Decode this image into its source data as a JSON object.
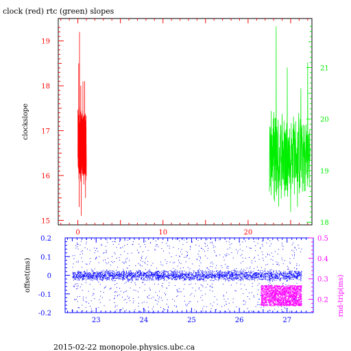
{
  "header_title": "clock (red) rtc (green) slopes",
  "footer": "2015-02-22  monopole.physics.ubc.ca",
  "colors": {
    "frame": "#000000",
    "clock": "#ff0000",
    "rtc": "#00ee00",
    "offset": "#0000ff",
    "rndtrip": "#ff00ff"
  },
  "chart_data": [
    {
      "type": "line",
      "title": "clock (red) rtc (green) slopes",
      "xlabel": "",
      "ylabel": "clockslope",
      "xlim": [
        -2.3,
        27.5
      ],
      "x_ticks": [
        0,
        10,
        20
      ],
      "left_axis": {
        "color": "#ff0000",
        "ylim": [
          14.9,
          19.5
        ],
        "ticks": [
          15,
          16,
          17,
          18,
          19
        ]
      },
      "right_axis": {
        "color": "#00ee00",
        "ylim": [
          17.95,
          21.95
        ],
        "ticks": [
          18,
          19,
          20,
          21
        ]
      },
      "grid": false,
      "series": [
        {
          "name": "clock",
          "axis": "left",
          "color": "#ff0000",
          "x_range": [
            0.0,
            1.0
          ],
          "points": [
            [
              0.0,
              16.4
            ],
            [
              0.1,
              18.5
            ],
            [
              0.15,
              15.3
            ],
            [
              0.2,
              19.2
            ],
            [
              0.3,
              16.0
            ],
            [
              0.35,
              18.0
            ],
            [
              0.4,
              15.1
            ],
            [
              0.5,
              17.2
            ],
            [
              0.6,
              18.1
            ],
            [
              0.7,
              15.8
            ],
            [
              0.8,
              18.1
            ],
            [
              0.9,
              15.5
            ],
            [
              1.0,
              16.2
            ]
          ],
          "mean": 16.7
        },
        {
          "name": "rtc",
          "axis": "right",
          "color": "#00ee00",
          "x_range": [
            22.5,
            27.3
          ],
          "points": [
            [
              22.5,
              18.6
            ],
            [
              22.8,
              19.7
            ],
            [
              23.1,
              18.4
            ],
            [
              23.3,
              21.8
            ],
            [
              23.6,
              18.3
            ],
            [
              24.0,
              20.1
            ],
            [
              24.3,
              18.5
            ],
            [
              24.6,
              21.0
            ],
            [
              25.0,
              18.2
            ],
            [
              25.4,
              19.9
            ],
            [
              25.8,
              18.3
            ],
            [
              26.2,
              20.6
            ],
            [
              26.6,
              18.6
            ],
            [
              27.0,
              21.1
            ],
            [
              27.3,
              19.4
            ]
          ],
          "mean": 19.3
        }
      ]
    },
    {
      "type": "scatter",
      "xlabel": "",
      "ylabel": "offset(ms)",
      "xlim": [
        22.35,
        27.55
      ],
      "x_ticks": [
        23,
        24,
        25,
        26,
        27
      ],
      "left_axis": {
        "color": "#0000ff",
        "ylim": [
          -0.2,
          0.2
        ],
        "ticks": [
          -0.2,
          -0.1,
          0,
          0.1,
          0.2
        ]
      },
      "right_axis": {
        "color": "#ff00ff",
        "label": "rnd-trip(ms)",
        "ylim": [
          0.135,
          0.5
        ],
        "ticks": [
          0.2,
          0.3,
          0.4,
          0.5
        ]
      },
      "grid": false,
      "series": [
        {
          "name": "offset",
          "axis": "left",
          "color": "#0000ff",
          "x_range": [
            22.5,
            27.3
          ],
          "band_center": 0.0,
          "band_halfwidth": 0.03,
          "outlier_range": [
            -0.2,
            0.2
          ]
        },
        {
          "name": "rnd-trip",
          "axis": "right",
          "color": "#ff00ff",
          "x_range": [
            26.45,
            27.3
          ],
          "band": [
            0.17,
            0.27
          ]
        }
      ]
    }
  ]
}
